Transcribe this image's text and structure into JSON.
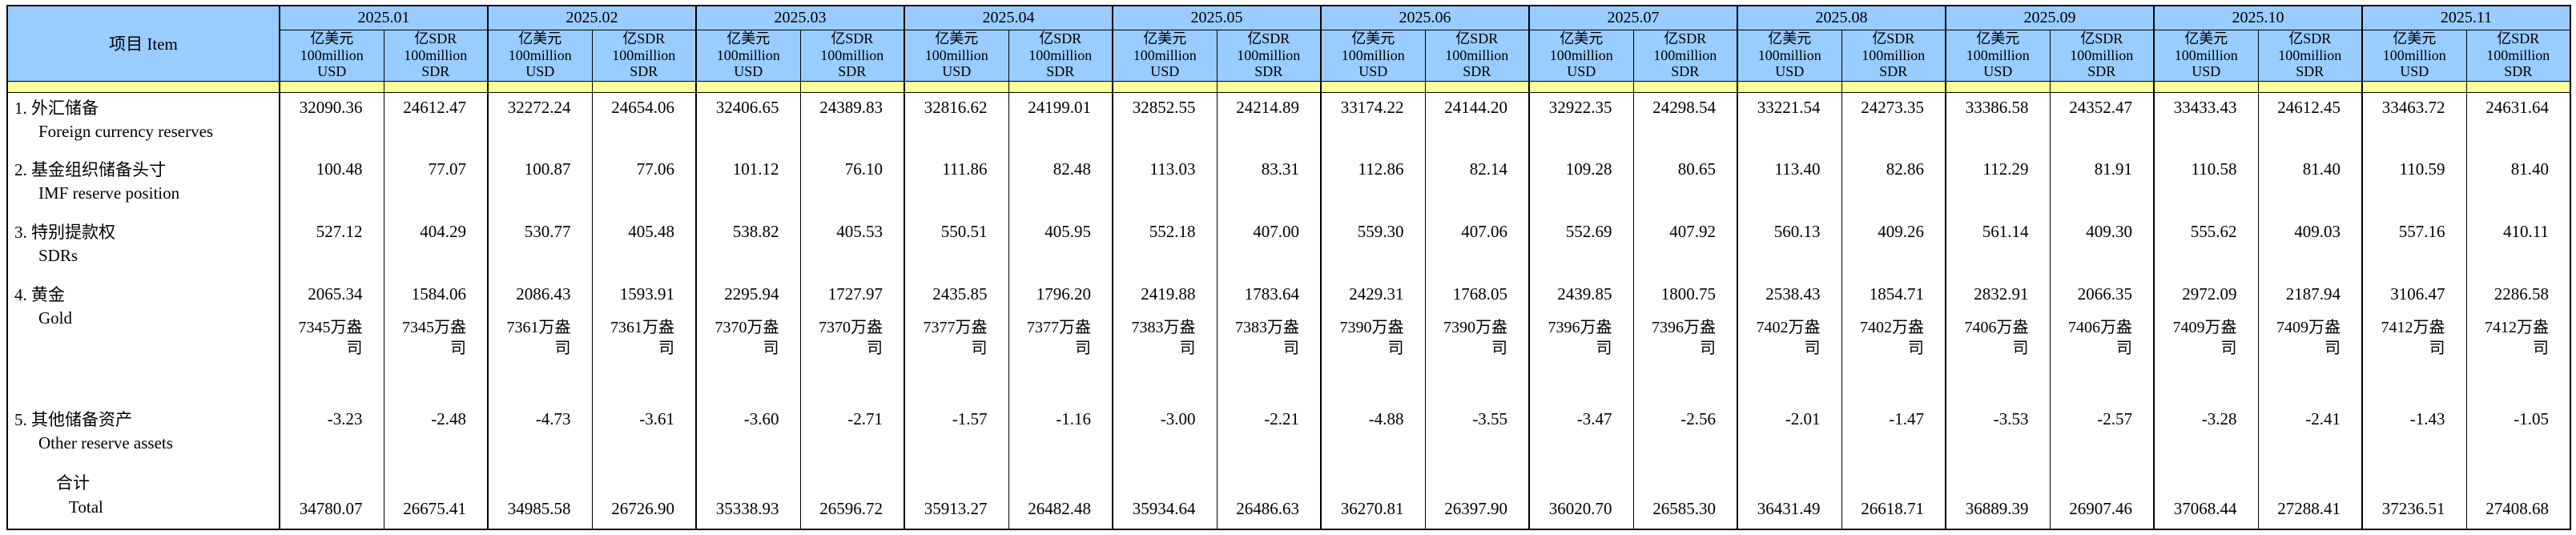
{
  "colors": {
    "header_bg": "#99CCFF",
    "separator_bg": "#FFFF99",
    "border": "#000000",
    "page_bg": "#FFFFFF"
  },
  "table": {
    "item_header": "项目  Item",
    "months": [
      "2025.01",
      "2025.02",
      "2025.03",
      "2025.04",
      "2025.05",
      "2025.06",
      "2025.07",
      "2025.08",
      "2025.09",
      "2025.10",
      "2025.11"
    ],
    "unit_usd": [
      "亿美元",
      "100million",
      "USD"
    ],
    "unit_sdr": [
      "亿SDR",
      "100million",
      "SDR"
    ],
    "rows": [
      {
        "type": "regular",
        "label_cn": "1. 外汇储备",
        "label_en": "Foreign currency reserves",
        "usd": [
          "32090.36",
          "32272.24",
          "32406.65",
          "32816.62",
          "32852.55",
          "33174.22",
          "32922.35",
          "33221.54",
          "33386.58",
          "33433.43",
          "33463.72"
        ],
        "sdr": [
          "24612.47",
          "24654.06",
          "24389.83",
          "24199.01",
          "24214.89",
          "24144.20",
          "24298.54",
          "24273.35",
          "24352.47",
          "24612.45",
          "24631.64"
        ]
      },
      {
        "type": "regular",
        "label_cn": "2. 基金组织储备头寸",
        "label_en": "IMF reserve position",
        "usd": [
          "100.48",
          "100.87",
          "101.12",
          "111.86",
          "113.03",
          "112.86",
          "109.28",
          "113.40",
          "112.29",
          "110.58",
          "110.59"
        ],
        "sdr": [
          "77.07",
          "77.06",
          "76.10",
          "82.48",
          "83.31",
          "82.14",
          "80.65",
          "82.86",
          "81.91",
          "81.40",
          "81.40"
        ]
      },
      {
        "type": "regular",
        "label_cn": "3. 特别提款权",
        "label_en": "SDRs",
        "usd": [
          "527.12",
          "530.77",
          "538.82",
          "550.51",
          "552.18",
          "559.30",
          "552.69",
          "560.13",
          "561.14",
          "555.62",
          "557.16"
        ],
        "sdr": [
          "404.29",
          "405.48",
          "405.53",
          "405.95",
          "407.00",
          "407.06",
          "407.92",
          "409.26",
          "409.30",
          "409.03",
          "410.11"
        ]
      },
      {
        "type": "gold",
        "label_cn": "4. 黄金",
        "label_en": "Gold",
        "usd": [
          "2065.34",
          "2086.43",
          "2295.94",
          "2435.85",
          "2419.88",
          "2429.31",
          "2439.85",
          "2538.43",
          "2832.91",
          "2972.09",
          "3106.47"
        ],
        "sdr": [
          "1584.06",
          "1593.91",
          "1727.97",
          "1796.20",
          "1783.64",
          "1768.05",
          "1800.75",
          "1854.71",
          "2066.35",
          "2187.94",
          "2286.58"
        ],
        "ounces": [
          "7345万盎司",
          "7361万盎司",
          "7370万盎司",
          "7377万盎司",
          "7383万盎司",
          "7390万盎司",
          "7396万盎司",
          "7402万盎司",
          "7406万盎司",
          "7409万盎司",
          "7412万盎司"
        ]
      },
      {
        "type": "regular",
        "label_cn": "5. 其他储备资产",
        "label_en": "Other reserve assets",
        "usd": [
          "-3.23",
          "-4.73",
          "-3.60",
          "-1.57",
          "-3.00",
          "-4.88",
          "-3.47",
          "-2.01",
          "-3.53",
          "-3.28",
          "-1.43"
        ],
        "sdr": [
          "-2.48",
          "-3.61",
          "-2.71",
          "-1.16",
          "-2.21",
          "-3.55",
          "-2.56",
          "-1.47",
          "-2.57",
          "-2.41",
          "-1.05"
        ]
      },
      {
        "type": "total",
        "label_cn": "合计",
        "label_en": "Total",
        "usd": [
          "34780.07",
          "34985.58",
          "35338.93",
          "35913.27",
          "35934.64",
          "36270.81",
          "36020.70",
          "36431.49",
          "36889.39",
          "37068.44",
          "37236.51"
        ],
        "sdr": [
          "26675.41",
          "26726.90",
          "26596.72",
          "26482.48",
          "26486.63",
          "26397.90",
          "26585.30",
          "26618.71",
          "26907.46",
          "27288.41",
          "27408.68"
        ]
      }
    ]
  }
}
